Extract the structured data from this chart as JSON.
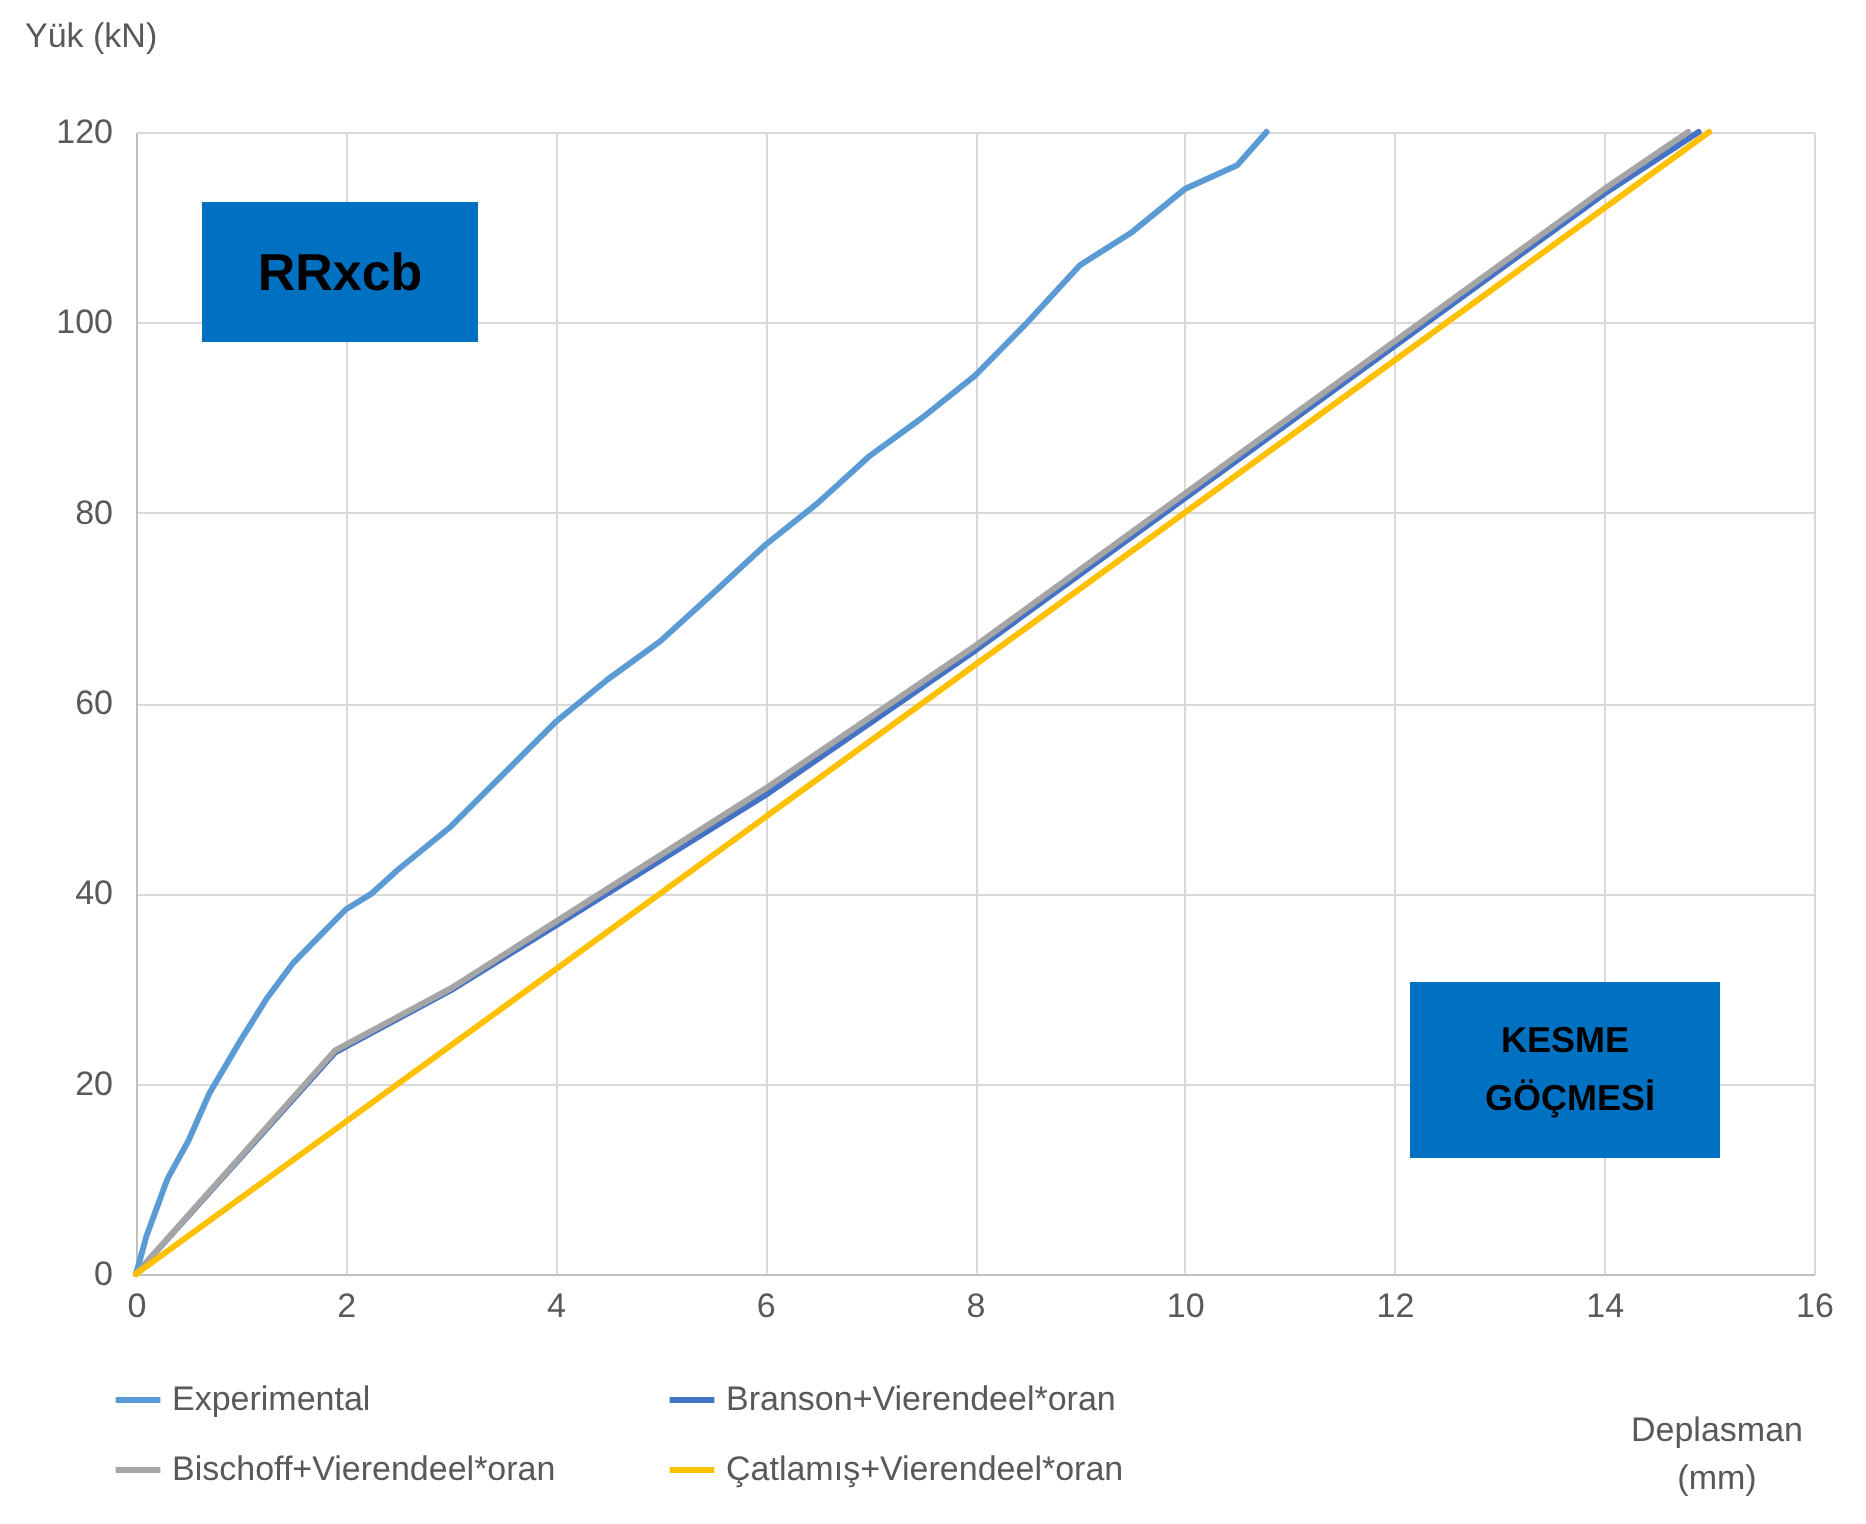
{
  "chart_data": {
    "type": "line",
    "ylabel": "Yük (kN)",
    "xlabel": "Deplasman (mm)",
    "xlim": [
      0,
      16
    ],
    "xticks": [
      0,
      2,
      4,
      6,
      8,
      10,
      12,
      14,
      16
    ],
    "ylim": [
      0,
      120
    ],
    "yticks": [
      0,
      20,
      40,
      60,
      80,
      100,
      120
    ],
    "grid": true,
    "legend": "bottom",
    "marker": "none",
    "line_style": "solid",
    "annotations": [
      "RRxcb",
      "KESME GÖÇMESİ"
    ],
    "series": [
      {
        "name": "Experimental",
        "color": "#5b9bd5",
        "x": [
          0,
          0.1,
          0.2,
          0.3,
          0.5,
          0.7,
          1,
          1.25,
          1.5,
          1.75,
          2,
          2.25,
          2.5,
          3,
          3.5,
          4,
          4.5,
          5,
          5.5,
          6,
          6.5,
          7,
          7.5,
          8,
          8.5,
          9,
          9.5,
          10,
          10.5,
          10.78
        ],
        "values": [
          0,
          4,
          7,
          10,
          14,
          19,
          24.6,
          29,
          32.7,
          35.5,
          38.3,
          40,
          42.5,
          47,
          52.5,
          58,
          62.5,
          66.5,
          71.5,
          76.6,
          81,
          86,
          90,
          94.4,
          100,
          106,
          109.5,
          114,
          116.5,
          120
        ]
      },
      {
        "name": "Branson+Vierendeel*oran",
        "color": "#4472c4",
        "x": [
          0,
          1.9,
          3,
          4,
          6,
          8,
          10,
          12,
          14,
          14.9
        ],
        "values": [
          0,
          23.3,
          29.8,
          36.6,
          50.3,
          65.5,
          81.5,
          97.5,
          113.5,
          120
        ]
      },
      {
        "name": "Bischoff+Vierendeel*oran",
        "color": "#a5a5a5",
        "x": [
          0,
          1.9,
          3,
          4,
          6,
          8,
          10,
          12,
          14,
          14.8
        ],
        "values": [
          0,
          23.5,
          30,
          37,
          51,
          66,
          82,
          98,
          114,
          120
        ]
      },
      {
        "name": "Çatlamış+Vierendeel*oran",
        "color": "#ffc000",
        "x": [
          0,
          15
        ],
        "values": [
          0,
          120
        ]
      }
    ]
  }
}
